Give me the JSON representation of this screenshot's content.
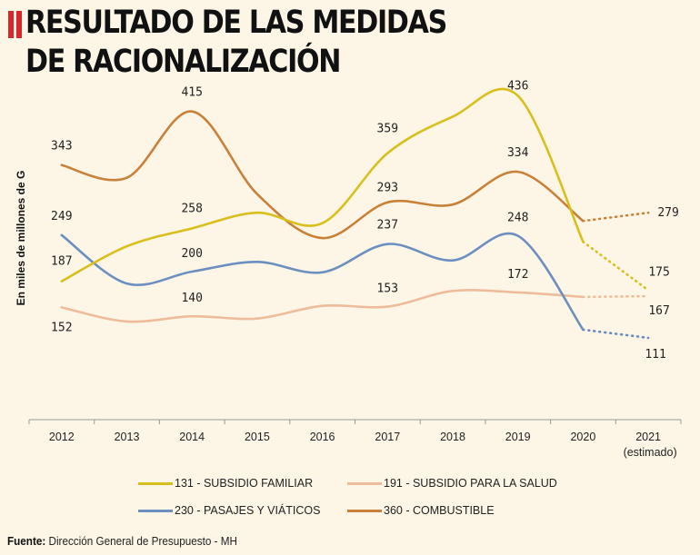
{
  "title": "RESULTADO DE LAS MEDIDAS DE RACIONALIZACIÓN",
  "title_lines": [
    "RESULTADO DE LAS MEDIDAS",
    "DE RACIONALIZACIÓN"
  ],
  "footer": {
    "label": "Fuente:",
    "text": " Dirección General de Presupuesto - MH"
  },
  "chart_data": {
    "type": "line",
    "ylabel": "En miles de millones de G",
    "xlabel": "",
    "categories": [
      "2012",
      "2013",
      "2014",
      "2015",
      "2016",
      "2017",
      "2018",
      "2019",
      "2020",
      "2021"
    ],
    "category_sublabels": {
      "2021": "(estimado)"
    },
    "grid": false,
    "legend": "bottom",
    "estimated_segment": "2020-2021 dotted",
    "series": [
      {
        "name": "131 - SUBSIDIO FAMILIAR",
        "color": "#d9bf1c",
        "values": [
          187,
          234,
          258,
          279,
          265,
          359,
          408,
          436,
          240,
          175
        ],
        "labeled": [
          0,
          2,
          5,
          7,
          9
        ]
      },
      {
        "name": "191 - SUBSIDIO PARA LA SALUD",
        "color": "#eebc9a",
        "values": [
          152,
          133,
          140,
          137,
          154,
          153,
          174,
          172,
          166,
          167
        ],
        "labeled": [
          0,
          2,
          5,
          7,
          9
        ]
      },
      {
        "name": "230 - PASAJES Y VIÁTICOS",
        "color": "#6d8fc0",
        "values": [
          249,
          184,
          200,
          213,
          199,
          237,
          215,
          248,
          122,
          111
        ],
        "labeled": [
          0,
          2,
          5,
          7,
          9
        ]
      },
      {
        "name": "360 - COMBUSTIBLE",
        "color": "#c9813a",
        "values": [
          343,
          326,
          415,
          304,
          245,
          293,
          290,
          334,
          268,
          279
        ],
        "labeled": [
          0,
          2,
          5,
          7,
          9
        ]
      }
    ]
  }
}
